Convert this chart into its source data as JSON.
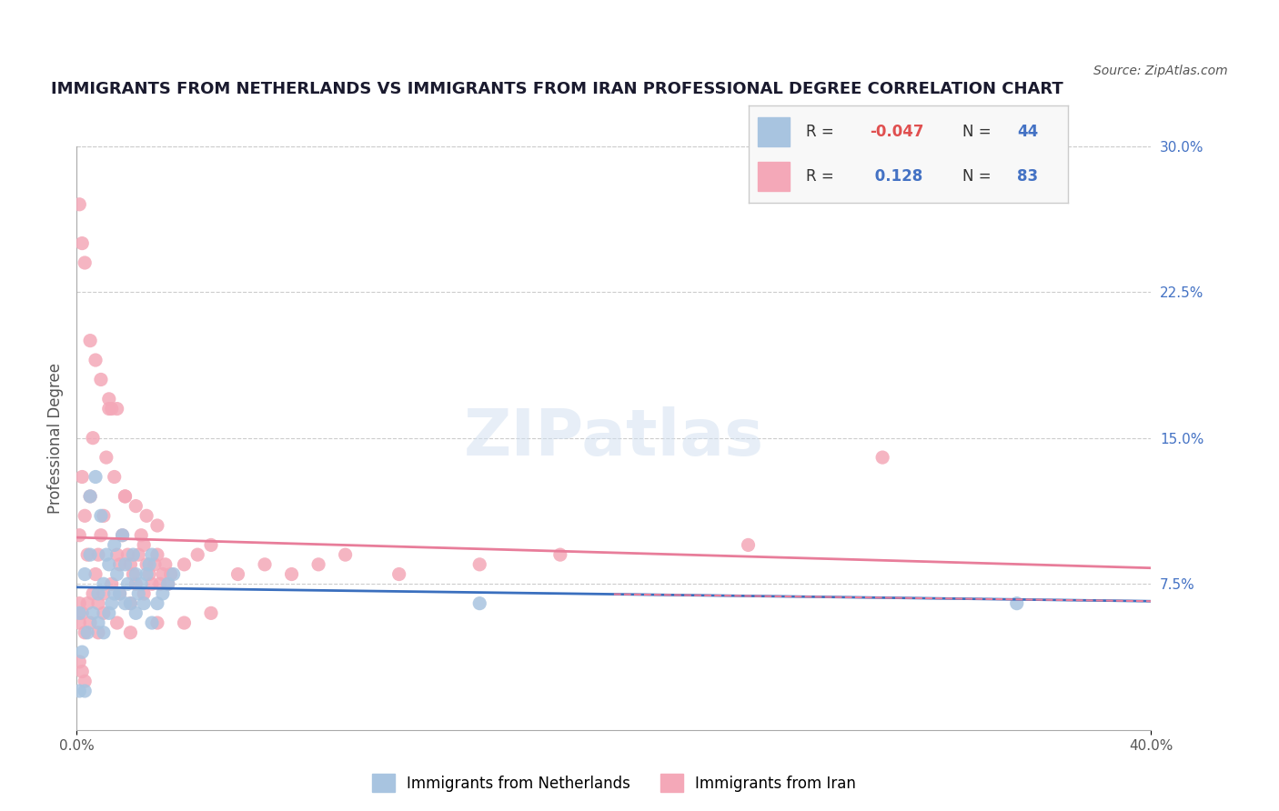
{
  "title": "IMMIGRANTS FROM NETHERLANDS VS IMMIGRANTS FROM IRAN PROFESSIONAL DEGREE CORRELATION CHART",
  "source_text": "Source: ZipAtlas.com",
  "xlabel": "",
  "ylabel": "Professional Degree",
  "xlim": [
    0.0,
    0.4
  ],
  "ylim": [
    0.0,
    0.3
  ],
  "x_ticks": [
    0.0,
    0.4
  ],
  "x_tick_labels": [
    "0.0%",
    "40.0%"
  ],
  "y_tick_labels_right": [
    "7.5%",
    "15.0%",
    "22.5%",
    "30.0%"
  ],
  "y_tick_positions_right": [
    0.075,
    0.15,
    0.225,
    0.3
  ],
  "legend_r1": "R = -0.047",
  "legend_n1": "N = 44",
  "legend_r2": "R =  0.128",
  "legend_n2": "N = 83",
  "color_netherlands": "#a8c4e0",
  "color_iran": "#f4a8b8",
  "color_line_netherlands": "#3a6fbe",
  "color_line_iran": "#e87d9a",
  "color_title": "#1a1a2e",
  "color_axis_labels": "#4472c4",
  "background_color": "#ffffff",
  "watermark": "ZIPatlas",
  "netherlands_x": [
    0.001,
    0.003,
    0.005,
    0.005,
    0.007,
    0.008,
    0.009,
    0.01,
    0.011,
    0.012,
    0.013,
    0.014,
    0.015,
    0.016,
    0.017,
    0.018,
    0.019,
    0.02,
    0.021,
    0.022,
    0.023,
    0.024,
    0.025,
    0.026,
    0.027,
    0.028,
    0.03,
    0.032,
    0.034,
    0.036,
    0.002,
    0.004,
    0.006,
    0.008,
    0.01,
    0.012,
    0.014,
    0.018,
    0.022,
    0.028,
    0.001,
    0.003,
    0.35,
    0.15
  ],
  "netherlands_y": [
    0.06,
    0.08,
    0.09,
    0.12,
    0.13,
    0.07,
    0.11,
    0.075,
    0.09,
    0.085,
    0.065,
    0.095,
    0.08,
    0.07,
    0.1,
    0.085,
    0.075,
    0.065,
    0.09,
    0.08,
    0.07,
    0.075,
    0.065,
    0.08,
    0.085,
    0.09,
    0.065,
    0.07,
    0.075,
    0.08,
    0.04,
    0.05,
    0.06,
    0.055,
    0.05,
    0.06,
    0.07,
    0.065,
    0.06,
    0.055,
    0.02,
    0.02,
    0.065,
    0.065
  ],
  "iran_x": [
    0.001,
    0.002,
    0.003,
    0.004,
    0.005,
    0.006,
    0.007,
    0.008,
    0.009,
    0.01,
    0.011,
    0.012,
    0.013,
    0.014,
    0.015,
    0.016,
    0.017,
    0.018,
    0.019,
    0.02,
    0.021,
    0.022,
    0.023,
    0.024,
    0.025,
    0.026,
    0.027,
    0.028,
    0.029,
    0.03,
    0.031,
    0.032,
    0.033,
    0.034,
    0.035,
    0.04,
    0.045,
    0.05,
    0.06,
    0.07,
    0.08,
    0.09,
    0.1,
    0.12,
    0.15,
    0.18,
    0.25,
    0.3,
    0.001,
    0.002,
    0.003,
    0.005,
    0.007,
    0.009,
    0.012,
    0.015,
    0.018,
    0.022,
    0.026,
    0.03,
    0.001,
    0.002,
    0.004,
    0.006,
    0.008,
    0.01,
    0.013,
    0.016,
    0.02,
    0.025,
    0.001,
    0.003,
    0.005,
    0.008,
    0.01,
    0.015,
    0.02,
    0.03,
    0.04,
    0.05,
    0.001,
    0.002,
    0.003
  ],
  "iran_y": [
    0.1,
    0.13,
    0.11,
    0.09,
    0.12,
    0.15,
    0.08,
    0.09,
    0.1,
    0.11,
    0.14,
    0.165,
    0.165,
    0.13,
    0.09,
    0.085,
    0.1,
    0.12,
    0.09,
    0.085,
    0.08,
    0.075,
    0.09,
    0.1,
    0.095,
    0.085,
    0.08,
    0.075,
    0.085,
    0.09,
    0.075,
    0.08,
    0.085,
    0.075,
    0.08,
    0.085,
    0.09,
    0.095,
    0.08,
    0.085,
    0.08,
    0.085,
    0.09,
    0.08,
    0.085,
    0.09,
    0.095,
    0.14,
    0.27,
    0.25,
    0.24,
    0.2,
    0.19,
    0.18,
    0.17,
    0.165,
    0.12,
    0.115,
    0.11,
    0.105,
    0.065,
    0.06,
    0.065,
    0.07,
    0.065,
    0.07,
    0.075,
    0.07,
    0.065,
    0.07,
    0.055,
    0.05,
    0.055,
    0.05,
    0.06,
    0.055,
    0.05,
    0.055,
    0.055,
    0.06,
    0.035,
    0.03,
    0.025
  ]
}
